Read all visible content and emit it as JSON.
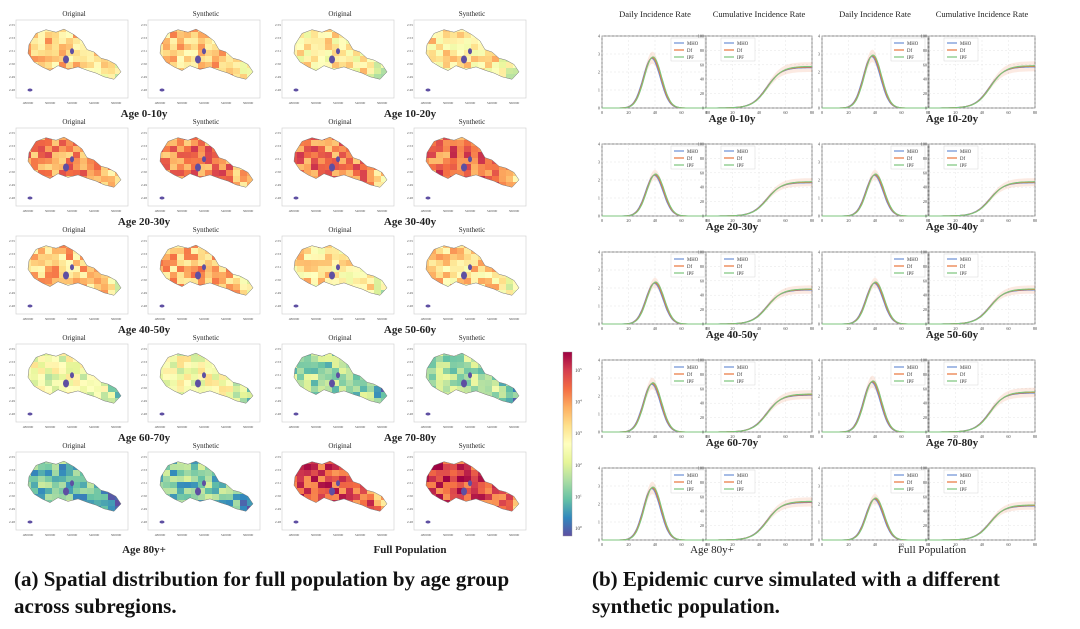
{
  "figure": {
    "panel_a": {
      "caption": "(a) Spatial distribution for full population by age group across subregions.",
      "panel_titles": [
        "Original",
        "Synthetic"
      ],
      "y_ticks": [
        "2.55",
        "2.53",
        "2.51",
        "2.50",
        "2.49",
        "2.48"
      ],
      "x_ticks": [
        "480000",
        "500000",
        "520000",
        "540000",
        "560000"
      ],
      "groups": [
        {
          "label": "Age 0-10y",
          "level": 0.62
        },
        {
          "label": "Age 10-20y",
          "level": 0.55
        },
        {
          "label": "Age 20-30y",
          "level": 0.75
        },
        {
          "label": "Age 30-40y",
          "level": 0.78
        },
        {
          "label": "Age 40-50y",
          "level": 0.65
        },
        {
          "label": "Age 50-60y",
          "level": 0.58
        },
        {
          "label": "Age 60-70y",
          "level": 0.45
        },
        {
          "label": "Age 70-80y",
          "level": 0.3
        },
        {
          "label": "Age 80y+",
          "level": 0.22
        },
        {
          "label": "Full Population",
          "level": 0.85
        }
      ],
      "colorbar": {
        "ticks": [
          "10^5",
          "10^4",
          "10^3",
          "10^2",
          "10^1",
          "10^0"
        ],
        "colors": [
          "#9e0142",
          "#d53e4f",
          "#f46d43",
          "#fdae61",
          "#fee08b",
          "#ffffbf",
          "#e6f598",
          "#abdda4",
          "#66c2a5",
          "#3288bd",
          "#5e4fa2"
        ]
      }
    },
    "panel_b": {
      "caption": "(b) Epidemic curve simulated with a different synthetic population.",
      "column_titles": [
        "Daily Incidence Rate",
        "Cumulative Incidence Rate",
        "Daily Incidence Rate",
        "Cumulative Incidence Rate"
      ],
      "legend": [
        "MHO",
        "Df",
        "IPF"
      ],
      "series_colors": [
        "#6b8fd6",
        "#e8743b",
        "#7cc47c"
      ],
      "groups": [
        "Age 0-10y",
        "Age 10-20y",
        "Age 20-30y",
        "Age 30-40y",
        "Age 40-50y",
        "Age 50-60y",
        "Age 60-70y",
        "Age 70-80y",
        "Age 80y+",
        "Full Population"
      ]
    }
  },
  "chart_data": [
    {
      "type": "line",
      "title": "Daily Incidence Rate",
      "xlabel": "",
      "ylabel": "",
      "xlim": [
        0,
        80
      ],
      "ylim": [
        0,
        4
      ],
      "x_ticks": [
        0,
        20,
        40,
        60,
        80
      ],
      "y_ticks": [
        0,
        1,
        2,
        3,
        4
      ],
      "legend_position": "top-right",
      "grid": true,
      "series": [
        {
          "name": "MHO",
          "color": "#6b8fd6"
        },
        {
          "name": "Df",
          "color": "#e8743b"
        },
        {
          "name": "IPF",
          "color": "#7cc47c"
        }
      ],
      "groups": [
        {
          "label": "Age 0-10y",
          "peak_day": 38,
          "peak_value": 2.8
        },
        {
          "label": "Age 10-20y",
          "peak_day": 38,
          "peak_value": 2.9
        },
        {
          "label": "Age 20-30y",
          "peak_day": 40,
          "peak_value": 2.3
        },
        {
          "label": "Age 30-40y",
          "peak_day": 40,
          "peak_value": 2.3
        },
        {
          "label": "Age 40-50y",
          "peak_day": 40,
          "peak_value": 2.3
        },
        {
          "label": "Age 50-60y",
          "peak_day": 40,
          "peak_value": 2.3
        },
        {
          "label": "Age 60-70y",
          "peak_day": 38,
          "peak_value": 2.7
        },
        {
          "label": "Age 70-80y",
          "peak_day": 38,
          "peak_value": 2.8
        },
        {
          "label": "Age 80y+",
          "peak_day": 38,
          "peak_value": 2.9
        },
        {
          "label": "Full Population",
          "peak_day": 40,
          "peak_value": 2.3
        }
      ]
    },
    {
      "type": "line",
      "title": "Cumulative Incidence Rate",
      "xlabel": "",
      "ylabel": "",
      "xlim": [
        0,
        80
      ],
      "ylim": [
        0,
        100
      ],
      "x_ticks": [
        0,
        20,
        40,
        60,
        80
      ],
      "y_ticks": [
        0,
        20,
        40,
        60,
        80,
        100
      ],
      "legend_position": "top-left",
      "grid": true,
      "series": [
        {
          "name": "MHO",
          "color": "#6b8fd6"
        },
        {
          "name": "Df",
          "color": "#e8743b"
        },
        {
          "name": "IPF",
          "color": "#7cc47c"
        }
      ],
      "groups": [
        {
          "label": "Age 0-10y",
          "final_value": 57
        },
        {
          "label": "Age 10-20y",
          "final_value": 58
        },
        {
          "label": "Age 20-30y",
          "final_value": 47
        },
        {
          "label": "Age 30-40y",
          "final_value": 47
        },
        {
          "label": "Age 40-50y",
          "final_value": 48
        },
        {
          "label": "Age 50-60y",
          "final_value": 48
        },
        {
          "label": "Age 60-70y",
          "final_value": 52
        },
        {
          "label": "Age 70-80y",
          "final_value": 55
        },
        {
          "label": "Age 80y+",
          "final_value": 53
        },
        {
          "label": "Full Population",
          "final_value": 48
        }
      ]
    }
  ]
}
